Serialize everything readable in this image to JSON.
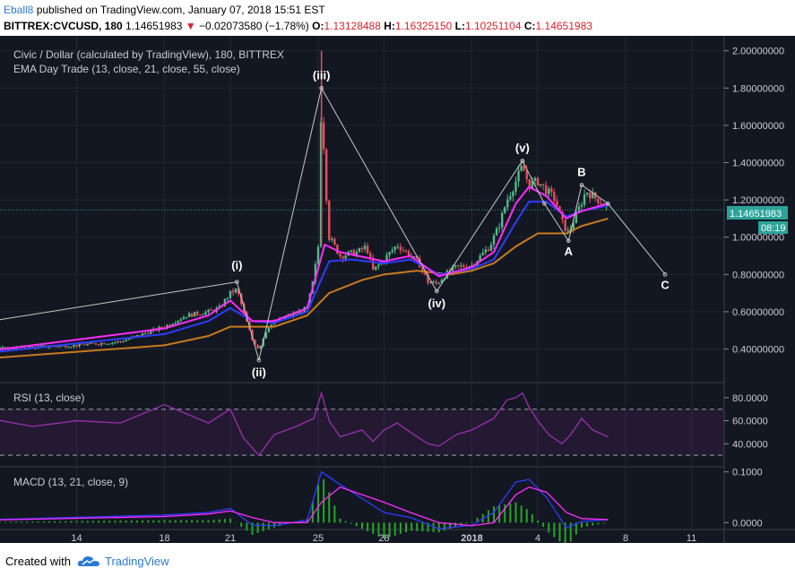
{
  "header": {
    "author": "Eball8",
    "published": " published on TradingView.com, January 07, 2018 15:51 EST",
    "symbol": "BITTREX:CVCUSD, 180",
    "last": "1.14651983",
    "change": "−0.02073580 (−1.78%)",
    "o_label": "O:",
    "o": "1.13128488",
    "h_label": "H:",
    "h": "1.16325150",
    "l_label": "L:",
    "l": "1.10251104",
    "c_label": "C:",
    "c": "1.14651983"
  },
  "main_pane": {
    "title": "Civic / Dollar (calculated by TradingView), 180, BITTREX",
    "indicator": "EMA Day Trade (13, close, 21, close, 55, close)",
    "price_label": "1.14651983",
    "countdown": "08:19"
  },
  "rsi_pane": {
    "title": "RSI (13, close)"
  },
  "macd_pane": {
    "title": "MACD (13, 21, close, 9)"
  },
  "footer": {
    "created_with": "Created with",
    "brand": "TradingView"
  },
  "colors": {
    "background": "#131722",
    "up": "#53b987",
    "down": "#eb4d5c",
    "ema13": "#ff2cff",
    "ema21": "#2f3cff",
    "ema55": "#c87a1e",
    "rsi": "#9b2fae",
    "macd": "#2f3cff",
    "signal": "#ff2cff",
    "hist": "#26a626"
  },
  "chart_data": [
    {
      "type": "candlestick",
      "pane": "price",
      "x_ticks": [
        "14",
        "18",
        "21",
        "25",
        "28",
        "2018",
        "4",
        "8",
        "11"
      ],
      "y_ticks": [
        "2.00000000",
        "1.80000000",
        "1.60000000",
        "1.40000000",
        "1.20000000",
        "1.00000000",
        "0.80000000",
        "0.60000000",
        "0.40000000"
      ],
      "ylim": [
        0.22,
        2.08
      ],
      "grid": true,
      "close_path": [
        [
          0,
          0.35
        ],
        [
          3,
          0.36
        ],
        [
          6,
          0.39
        ],
        [
          8,
          0.4
        ],
        [
          10,
          0.4
        ],
        [
          12,
          0.41
        ],
        [
          14,
          0.42
        ],
        [
          16,
          0.44
        ],
        [
          18,
          0.52
        ],
        [
          19,
          0.58
        ],
        [
          20,
          0.6
        ],
        [
          20.5,
          0.62
        ],
        [
          21,
          0.7
        ],
        [
          21.3,
          0.72
        ],
        [
          21.6,
          0.6
        ],
        [
          22,
          0.45
        ],
        [
          22.3,
          0.4
        ],
        [
          22.7,
          0.52
        ],
        [
          23.3,
          0.56
        ],
        [
          24,
          0.59
        ],
        [
          24.5,
          0.62
        ],
        [
          24.8,
          0.78
        ],
        [
          25.0,
          0.95
        ],
        [
          25.15,
          1.78
        ],
        [
          25.3,
          1.35
        ],
        [
          25.5,
          1.0
        ],
        [
          26,
          0.9
        ],
        [
          26.8,
          0.92
        ],
        [
          27.2,
          0.95
        ],
        [
          27.5,
          0.82
        ],
        [
          28,
          0.88
        ],
        [
          28.6,
          0.96
        ],
        [
          29.2,
          0.9
        ],
        [
          29.6,
          0.86
        ],
        [
          30,
          0.76
        ],
        [
          30.4,
          0.75
        ],
        [
          30.8,
          0.8
        ],
        [
          31.3,
          0.84
        ],
        [
          32,
          0.85
        ],
        [
          32.8,
          0.95
        ],
        [
          33.2,
          1.05
        ],
        [
          33.6,
          1.2
        ],
        [
          34,
          1.3
        ],
        [
          34.3,
          1.38
        ],
        [
          34.6,
          1.28
        ],
        [
          35.0,
          1.3
        ],
        [
          35.4,
          1.25
        ],
        [
          35.8,
          1.2
        ],
        [
          36.1,
          1.08
        ],
        [
          36.4,
          1.02
        ],
        [
          36.6,
          1.08
        ],
        [
          36.9,
          1.16
        ],
        [
          37.2,
          1.25
        ],
        [
          37.5,
          1.22
        ],
        [
          37.9,
          1.19
        ],
        [
          38.2,
          1.15
        ]
      ],
      "ema13_path": [
        [
          0,
          0.34
        ],
        [
          10,
          0.39
        ],
        [
          18,
          0.51
        ],
        [
          20,
          0.58
        ],
        [
          21,
          0.66
        ],
        [
          22,
          0.55
        ],
        [
          23,
          0.55
        ],
        [
          24.5,
          0.62
        ],
        [
          25.3,
          0.96
        ],
        [
          26,
          0.92
        ],
        [
          28,
          0.87
        ],
        [
          29.2,
          0.9
        ],
        [
          30.5,
          0.79
        ],
        [
          32,
          0.84
        ],
        [
          33,
          0.92
        ],
        [
          34,
          1.18
        ],
        [
          34.6,
          1.27
        ],
        [
          35.4,
          1.22
        ],
        [
          36.3,
          1.1
        ],
        [
          37,
          1.14
        ],
        [
          38.2,
          1.18
        ]
      ],
      "ema21_path": [
        [
          0,
          0.33
        ],
        [
          10,
          0.38
        ],
        [
          18,
          0.48
        ],
        [
          20,
          0.55
        ],
        [
          21,
          0.62
        ],
        [
          22,
          0.55
        ],
        [
          23,
          0.54
        ],
        [
          24.5,
          0.6
        ],
        [
          25.5,
          0.87
        ],
        [
          26.5,
          0.88
        ],
        [
          28,
          0.86
        ],
        [
          29.2,
          0.88
        ],
        [
          30.5,
          0.8
        ],
        [
          32,
          0.83
        ],
        [
          33,
          0.88
        ],
        [
          34,
          1.08
        ],
        [
          34.6,
          1.19
        ],
        [
          35.4,
          1.19
        ],
        [
          36.3,
          1.11
        ],
        [
          37,
          1.14
        ],
        [
          38.2,
          1.17
        ]
      ],
      "ema55_path": [
        [
          0,
          0.31
        ],
        [
          10,
          0.35
        ],
        [
          18,
          0.42
        ],
        [
          20,
          0.47
        ],
        [
          21,
          0.52
        ],
        [
          23,
          0.52
        ],
        [
          24.5,
          0.58
        ],
        [
          25.5,
          0.7
        ],
        [
          27,
          0.77
        ],
        [
          28,
          0.8
        ],
        [
          29.5,
          0.82
        ],
        [
          31,
          0.8
        ],
        [
          32,
          0.82
        ],
        [
          33,
          0.86
        ],
        [
          34,
          0.95
        ],
        [
          35,
          1.02
        ],
        [
          36.3,
          1.02
        ],
        [
          37,
          1.06
        ],
        [
          38.2,
          1.1
        ]
      ],
      "wave_annotations": [
        {
          "label": "(i)",
          "x": 21.3,
          "y": 0.76
        },
        {
          "label": "(ii)",
          "x": 22.3,
          "y": 0.34
        },
        {
          "label": "(iii)",
          "x": 25.15,
          "y": 1.8
        },
        {
          "label": "(iv)",
          "x": 30.4,
          "y": 0.71
        },
        {
          "label": "(v)",
          "x": 34.3,
          "y": 1.41
        },
        {
          "label": "A",
          "x": 36.4,
          "y": 0.98
        },
        {
          "label": "B",
          "x": 37.0,
          "y": 1.28
        },
        {
          "label": "C",
          "x": 40.8,
          "y": 0.8
        }
      ],
      "wave_path": [
        [
          0,
          0.36
        ],
        [
          21.3,
          0.76
        ],
        [
          22.3,
          0.34
        ],
        [
          25.15,
          1.8
        ],
        [
          30.4,
          0.71
        ],
        [
          34.3,
          1.41
        ],
        [
          35.3,
          1.18
        ],
        [
          36.4,
          0.98
        ],
        [
          37.0,
          1.28
        ],
        [
          38.2,
          1.18
        ],
        [
          40.8,
          0.8
        ]
      ]
    },
    {
      "type": "line",
      "pane": "rsi",
      "y_ticks": [
        "80.0000",
        "60.0000",
        "40.0000"
      ],
      "ylim": [
        20,
        90
      ],
      "bands": [
        70,
        30
      ],
      "series": [
        {
          "values": [
            [
              0,
              54
            ],
            [
              2,
              60
            ],
            [
              4,
              56
            ],
            [
              6,
              63
            ],
            [
              8,
              58
            ],
            [
              10,
              62
            ],
            [
              12,
              55
            ],
            [
              14,
              60
            ],
            [
              16,
              58
            ],
            [
              18,
              74
            ],
            [
              20,
              58
            ],
            [
              21,
              70
            ],
            [
              21.6,
              45
            ],
            [
              22.3,
              30
            ],
            [
              23,
              48
            ],
            [
              24,
              55
            ],
            [
              24.8,
              62
            ],
            [
              25.15,
              84
            ],
            [
              25.5,
              60
            ],
            [
              26,
              46
            ],
            [
              27,
              52
            ],
            [
              27.5,
              42
            ],
            [
              28,
              52
            ],
            [
              28.6,
              58
            ],
            [
              29.2,
              50
            ],
            [
              30,
              40
            ],
            [
              30.5,
              38
            ],
            [
              31.3,
              48
            ],
            [
              32,
              52
            ],
            [
              33,
              62
            ],
            [
              33.6,
              78
            ],
            [
              34,
              80
            ],
            [
              34.3,
              84
            ],
            [
              34.6,
              72
            ],
            [
              35.0,
              60
            ],
            [
              35.5,
              48
            ],
            [
              36.1,
              40
            ],
            [
              36.5,
              48
            ],
            [
              37,
              62
            ],
            [
              37.5,
              52
            ],
            [
              38.2,
              46
            ]
          ]
        }
      ]
    },
    {
      "type": "bar+line",
      "pane": "macd",
      "y_ticks": [
        "0.1000",
        "0.0000"
      ],
      "ylim": [
        -0.04,
        0.11
      ],
      "series": [
        {
          "values": [
            [
              0,
              0.004
            ],
            [
              10,
              0.006
            ],
            [
              18,
              0.015
            ],
            [
              20,
              0.02
            ],
            [
              21,
              0.028
            ],
            [
              22,
              -0.005
            ],
            [
              23,
              -0.006
            ],
            [
              24.5,
              0.005
            ],
            [
              25.15,
              0.1
            ],
            [
              26,
              0.075
            ],
            [
              28,
              0.02
            ],
            [
              29.2,
              0.01
            ],
            [
              30.5,
              -0.012
            ],
            [
              32,
              -0.005
            ],
            [
              33,
              0.02
            ],
            [
              34,
              0.08
            ],
            [
              34.6,
              0.085
            ],
            [
              35.4,
              0.05
            ],
            [
              36.3,
              -0.01
            ],
            [
              37,
              0.002
            ],
            [
              38.2,
              0.006
            ]
          ]
        },
        {
          "values": [
            [
              0,
              0.003
            ],
            [
              10,
              0.005
            ],
            [
              18,
              0.012
            ],
            [
              20,
              0.017
            ],
            [
              21,
              0.023
            ],
            [
              22,
              0.01
            ],
            [
              23,
              0.0
            ],
            [
              24.5,
              0.0
            ],
            [
              25.15,
              0.04
            ],
            [
              26,
              0.07
            ],
            [
              28,
              0.04
            ],
            [
              29.2,
              0.02
            ],
            [
              30.5,
              0.0
            ],
            [
              32,
              -0.006
            ],
            [
              33,
              0.0
            ],
            [
              34,
              0.055
            ],
            [
              34.6,
              0.07
            ],
            [
              35.4,
              0.06
            ],
            [
              36.3,
              0.02
            ],
            [
              37,
              0.008
            ],
            [
              38.2,
              0.006
            ]
          ]
        }
      ]
    }
  ]
}
